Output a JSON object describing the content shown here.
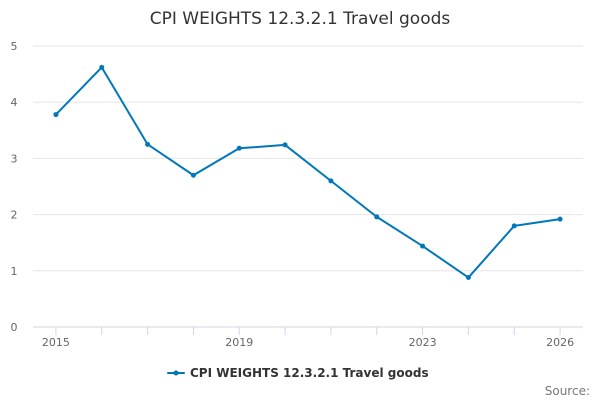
{
  "chart_data": {
    "type": "line",
    "title": "CPI WEIGHTS 12.3.2.1 Travel goods",
    "xlabel": "",
    "ylabel": "",
    "x": [
      2015,
      2016,
      2017,
      2018,
      2019,
      2020,
      2021,
      2022,
      2023,
      2024,
      2025,
      2026
    ],
    "series": [
      {
        "name": "CPI WEIGHTS 12.3.2.1 Travel goods",
        "color": "#0077bb",
        "values": [
          3.78,
          4.62,
          3.25,
          2.7,
          3.18,
          3.24,
          2.6,
          1.96,
          1.44,
          0.88,
          1.8,
          1.92
        ]
      }
    ],
    "ylim": [
      0,
      5
    ],
    "yticks": [
      0,
      1,
      2,
      3,
      4,
      5
    ],
    "xticks_labeled": [
      2015,
      2019,
      2023,
      2026
    ],
    "grid": true,
    "legend": "bottom-center",
    "credits": "Source:"
  }
}
